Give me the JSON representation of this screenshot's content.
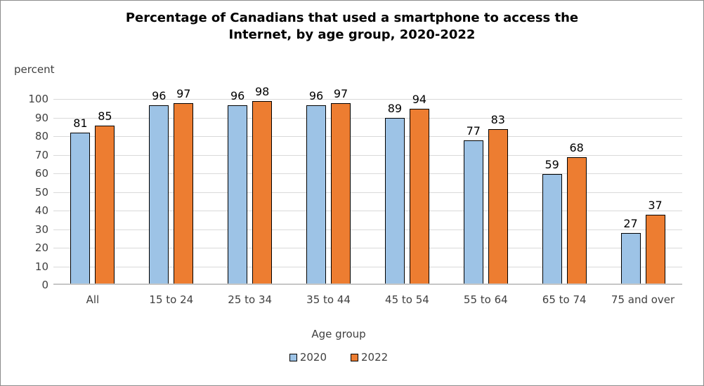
{
  "header": {
    "title_line1": "Percentage of Canadians that used a smartphone to access the",
    "title_line2": "Internet, by age group, 2020-2022"
  },
  "chart_data": {
    "type": "bar",
    "title": "Percentage of Canadians that used a smartphone to access the Internet, by age group, 2020-2022",
    "categories": [
      "All",
      "15 to 24",
      "25 to 34",
      "35 to 44",
      "45 to 54",
      "55 to 64",
      "65 to 74",
      "75 and over"
    ],
    "series": [
      {
        "name": "2020",
        "color": "#9DC3E6",
        "values": [
          81,
          96,
          96,
          96,
          89,
          77,
          59,
          27
        ]
      },
      {
        "name": "2022",
        "color": "#ED7D31",
        "values": [
          85,
          97,
          98,
          97,
          94,
          83,
          68,
          37
        ]
      }
    ],
    "ylabel": "percent",
    "xlabel": "Age group",
    "ylim": [
      0,
      100
    ],
    "yticks": [
      0,
      10,
      20,
      30,
      40,
      50,
      60,
      70,
      80,
      90,
      100
    ],
    "grid": true,
    "data_labels": true,
    "legend_position": "bottom"
  },
  "colors": {
    "series_2020": "#9DC3E6",
    "series_2022": "#ED7D31",
    "bar_border": "#000000",
    "gridline": "#d9d9d9",
    "axis_line": "#c6c6c6",
    "axis_text": "#404040",
    "title_text": "#000000"
  }
}
